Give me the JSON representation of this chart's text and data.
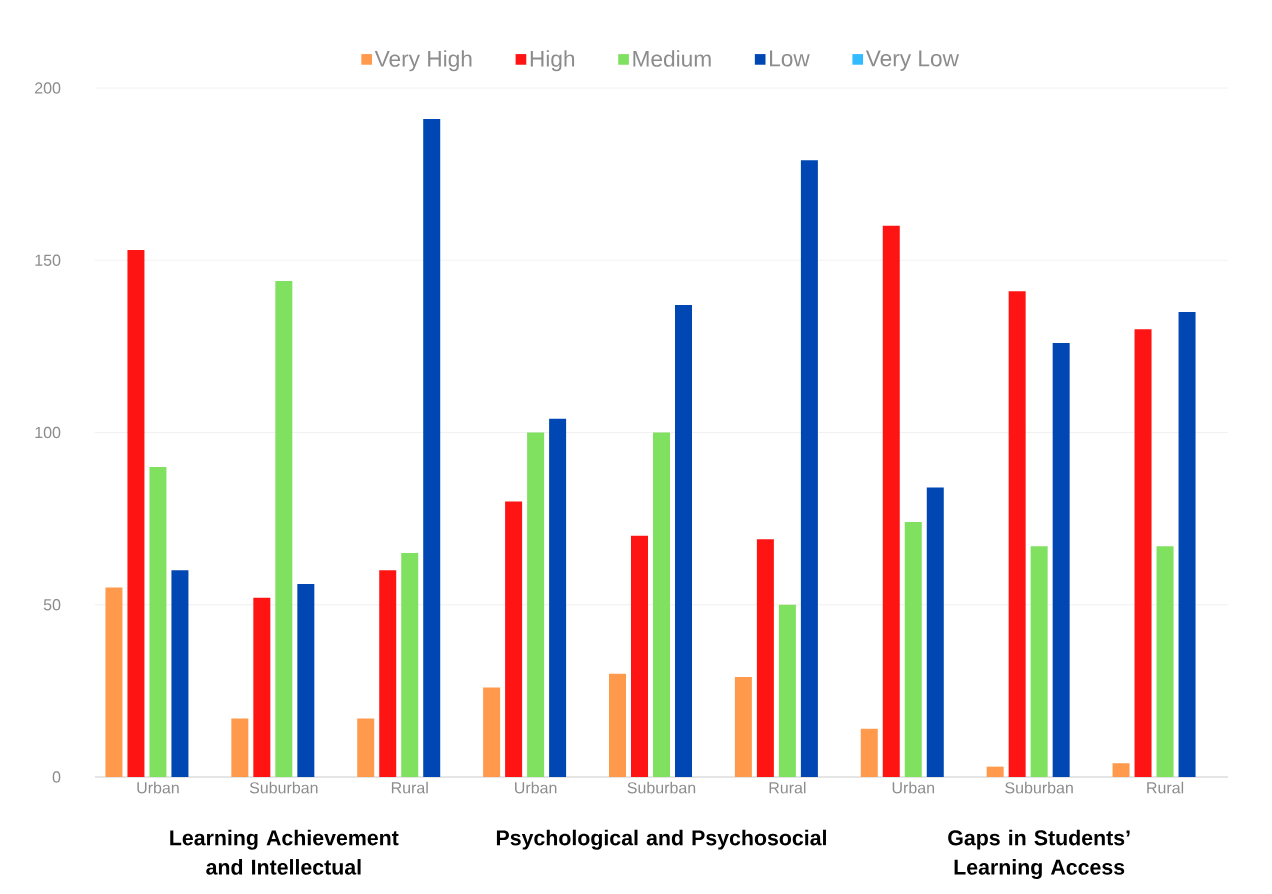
{
  "chart_data": {
    "type": "bar",
    "categories": [
      "Urban",
      "Suburban",
      "Rural",
      "Urban",
      "Suburban",
      "Rural",
      "Urban",
      "Suburban",
      "Rural"
    ],
    "series": [
      {
        "name": "Very High",
        "color": "#ff9a4d",
        "values": [
          55,
          17,
          17,
          26,
          30,
          29,
          14,
          3,
          4
        ]
      },
      {
        "name": "High",
        "color": "#ff1414",
        "values": [
          153,
          52,
          60,
          80,
          70,
          69,
          160,
          141,
          130
        ]
      },
      {
        "name": "Medium",
        "color": "#80e060",
        "values": [
          90,
          144,
          65,
          100,
          100,
          50,
          74,
          67,
          67
        ]
      },
      {
        "name": "Low",
        "color": "#0047b3",
        "values": [
          60,
          56,
          191,
          104,
          137,
          179,
          84,
          126,
          135
        ]
      },
      {
        "name": "Very Low",
        "color": "#33bbff",
        "values": [
          0,
          0,
          0,
          0,
          0,
          0,
          0,
          0,
          0
        ]
      }
    ],
    "ylim": [
      0,
      200
    ],
    "yticks": [
      0,
      50,
      100,
      150,
      200
    ],
    "grid": "y",
    "legend": "top",
    "annotations": [
      "**Learning Achievement and Intellectual**",
      "**Psychological and Psychosocial**",
      "**Gaps in Students’ Learning Access**"
    ]
  }
}
